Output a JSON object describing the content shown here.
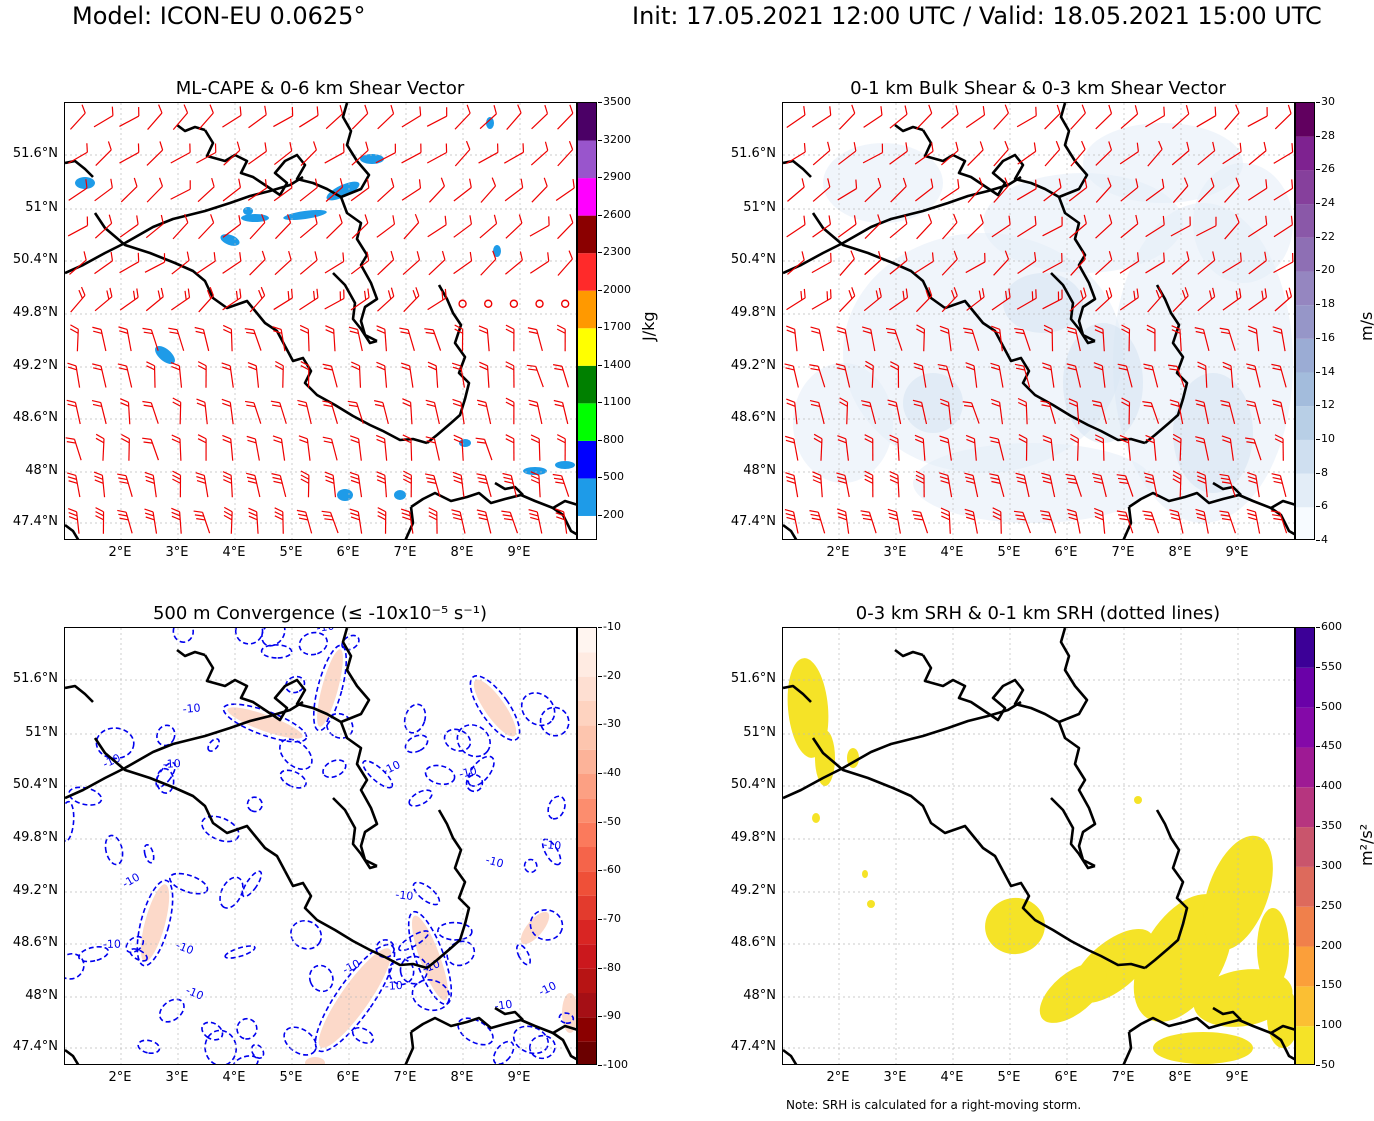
{
  "header": {
    "model": "Model: ICON-EU 0.0625°",
    "times": "Init: 17.05.2021 12:00 UTC / Valid: 18.05.2021 15:00 UTC"
  },
  "note": "Note: SRH is calculated for a right-moving storm.",
  "chart_data": [
    {
      "type": "heatmap",
      "id": "cape",
      "title": "ML-CAPE & 0-6 km Shear Vector",
      "lat_ticks": [
        "51.6°N",
        "51°N",
        "50.4°N",
        "49.8°N",
        "49.2°N",
        "48.6°N",
        "48°N",
        "47.4°N"
      ],
      "lon_ticks": [
        "2°E",
        "3°E",
        "4°E",
        "5°E",
        "6°E",
        "7°E",
        "8°E",
        "9°E"
      ],
      "colorbar": {
        "label": "J/kg",
        "min": 0,
        "max": 3500,
        "ticks": [
          "200",
          "500",
          "800",
          "1100",
          "1400",
          "1700",
          "2000",
          "2300",
          "2600",
          "2900",
          "3200",
          "3500"
        ],
        "bounds": [
          0,
          200,
          500,
          800,
          1100,
          1400,
          1700,
          2000,
          2300,
          2600,
          2900,
          3200,
          3500
        ],
        "colors": [
          "#ffffff",
          "#1e9be8",
          "#0000ff",
          "#00ff00",
          "#008000",
          "#ffff00",
          "#ff9900",
          "#ff2a2a",
          "#8b0000",
          "#ff00ff",
          "#9955cc",
          "#4b0066"
        ]
      }
    },
    {
      "type": "heatmap",
      "id": "shear01",
      "title": "0-1 km Bulk Shear & 0-3 km Shear Vector",
      "lat_ticks": [
        "51.6°N",
        "51°N",
        "50.4°N",
        "49.8°N",
        "49.2°N",
        "48.6°N",
        "48°N",
        "47.4°N"
      ],
      "lon_ticks": [
        "2°E",
        "3°E",
        "4°E",
        "5°E",
        "6°E",
        "7°E",
        "8°E",
        "9°E"
      ],
      "colorbar": {
        "label": "m/s",
        "min": 4,
        "max": 30,
        "ticks": [
          "4",
          "6",
          "8",
          "10",
          "12",
          "14",
          "16",
          "18",
          "20",
          "22",
          "24",
          "26",
          "28",
          "30"
        ],
        "bounds": [
          4,
          6,
          8,
          10,
          12,
          14,
          16,
          18,
          20,
          22,
          24,
          26,
          28,
          30
        ],
        "colors": [
          "#f7fbff",
          "#e3edf7",
          "#cfdff0",
          "#b8cfe6",
          "#a3bcdc",
          "#9bacd4",
          "#9696c8",
          "#9586c0",
          "#8e6fb4",
          "#8a58a8",
          "#86409c",
          "#7e2290",
          "#61005f"
        ]
      }
    },
    {
      "type": "heatmap",
      "id": "conv",
      "title": "500 m Convergence (≤ -10x10⁻⁵ s⁻¹)",
      "lat_ticks": [
        "51.6°N",
        "51°N",
        "50.4°N",
        "49.8°N",
        "49.2°N",
        "48.6°N",
        "48°N",
        "47.4°N"
      ],
      "lon_ticks": [
        "2°E",
        "3°E",
        "4°E",
        "5°E",
        "6°E",
        "7°E",
        "8°E",
        "9°E"
      ],
      "contour_label": "-10",
      "colorbar": {
        "label": "",
        "min": -100,
        "max": -10,
        "ticks": [
          "-10",
          "-20",
          "-30",
          "-40",
          "-50",
          "-60",
          "-70",
          "-80",
          "-90",
          "-100"
        ],
        "bounds": [
          -100,
          -95,
          -90,
          -85,
          -80,
          -75,
          -70,
          -65,
          -60,
          -55,
          -50,
          -45,
          -40,
          -35,
          -30,
          -25,
          -20,
          -15,
          -10
        ],
        "colors": [
          "#6b0000",
          "#8b0000",
          "#a50f15",
          "#b71414",
          "#cb181d",
          "#d92523",
          "#e33b2d",
          "#ef5038",
          "#f5644a",
          "#fb7a5c",
          "#fc8d6e",
          "#fca083",
          "#fcb399",
          "#fdc5ae",
          "#fed3c0",
          "#fedfd2",
          "#ffebe2",
          "#fff5f0"
        ]
      }
    },
    {
      "type": "heatmap",
      "id": "srh",
      "title": "0-3 km SRH & 0-1 km SRH (dotted lines)",
      "lat_ticks": [
        "51.6°N",
        "51°N",
        "50.4°N",
        "49.8°N",
        "49.2°N",
        "48.6°N",
        "48°N",
        "47.4°N"
      ],
      "lon_ticks": [
        "2°E",
        "3°E",
        "4°E",
        "5°E",
        "6°E",
        "7°E",
        "8°E",
        "9°E"
      ],
      "colorbar": {
        "label": "m²/s²",
        "min": 50,
        "max": 600,
        "ticks": [
          "50",
          "100",
          "150",
          "200",
          "250",
          "300",
          "350",
          "400",
          "450",
          "500",
          "550",
          "600"
        ],
        "bounds": [
          50,
          100,
          150,
          200,
          250,
          300,
          350,
          400,
          450,
          500,
          550,
          600
        ],
        "colors": [
          "#f5e327",
          "#fbbf33",
          "#fb9f3a",
          "#f0804b",
          "#dd6a5c",
          "#c9556c",
          "#b6357f",
          "#9e1a94",
          "#8409a8",
          "#6a01a8",
          "#3c0097"
        ]
      }
    }
  ]
}
